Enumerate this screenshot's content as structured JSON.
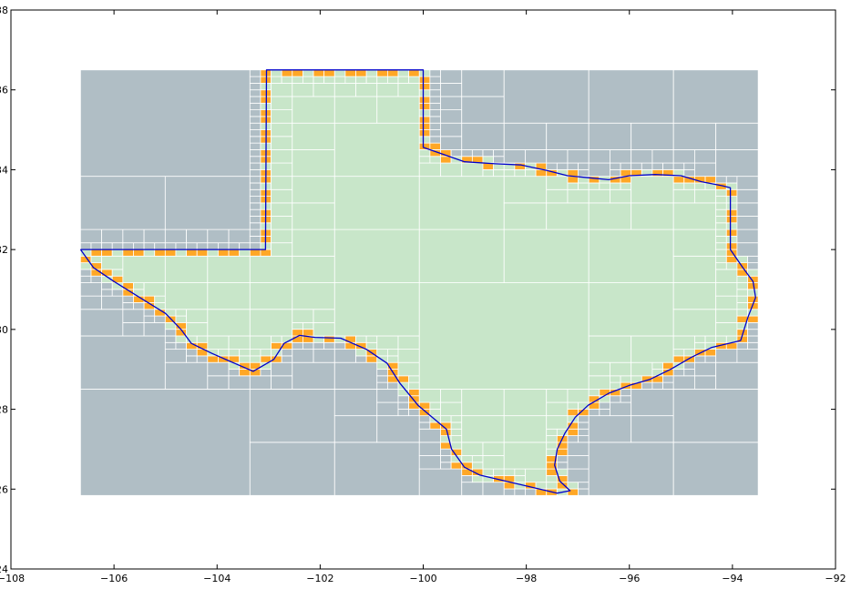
{
  "chart_data": {
    "type": "map",
    "title": "",
    "xlabel": "",
    "ylabel": "",
    "xlim": [
      -108,
      -92
    ],
    "ylim": [
      24,
      38
    ],
    "xticks": [
      -108,
      -106,
      -104,
      -102,
      -100,
      -98,
      -96,
      -94,
      -92
    ],
    "yticks": [
      24,
      26,
      28,
      30,
      32,
      34,
      36,
      38
    ],
    "xtick_labels": [
      "−108",
      "−106",
      "−104",
      "−102",
      "−100",
      "−98",
      "−96",
      "−94",
      "−92"
    ],
    "ytick_labels": [
      "24",
      "26",
      "28",
      "30",
      "32",
      "34",
      "36",
      "38"
    ],
    "grid": false,
    "bbox_extent": {
      "lon": [
        -106.65,
        -93.5
      ],
      "lat": [
        25.84,
        36.5
      ]
    },
    "colors": {
      "outside": "#b0bec5",
      "inside": "#c8e6c9",
      "boundary_cell": "#ffa726",
      "cell_edge": "#ffffff",
      "border": "#0000cc"
    },
    "border": [
      [
        -106.65,
        32.0
      ],
      [
        -103.06,
        32.0
      ],
      [
        -103.04,
        36.5
      ],
      [
        -100.0,
        36.5
      ],
      [
        -100.0,
        34.56
      ],
      [
        -99.6,
        34.38
      ],
      [
        -99.2,
        34.2
      ],
      [
        -98.6,
        34.15
      ],
      [
        -98.1,
        34.12
      ],
      [
        -97.6,
        33.98
      ],
      [
        -97.2,
        33.85
      ],
      [
        -96.8,
        33.8
      ],
      [
        -96.4,
        33.75
      ],
      [
        -96.0,
        33.85
      ],
      [
        -95.5,
        33.88
      ],
      [
        -95.0,
        33.85
      ],
      [
        -94.6,
        33.7
      ],
      [
        -94.2,
        33.6
      ],
      [
        -94.04,
        33.55
      ],
      [
        -94.04,
        33.0
      ],
      [
        -94.04,
        32.0
      ],
      [
        -93.8,
        31.55
      ],
      [
        -93.6,
        31.2
      ],
      [
        -93.55,
        30.8
      ],
      [
        -93.7,
        30.3
      ],
      [
        -93.84,
        29.72
      ],
      [
        -94.4,
        29.55
      ],
      [
        -94.8,
        29.3
      ],
      [
        -95.2,
        29.0
      ],
      [
        -95.6,
        28.75
      ],
      [
        -96.0,
        28.6
      ],
      [
        -96.4,
        28.4
      ],
      [
        -96.8,
        28.1
      ],
      [
        -97.05,
        27.8
      ],
      [
        -97.25,
        27.4
      ],
      [
        -97.4,
        27.0
      ],
      [
        -97.45,
        26.6
      ],
      [
        -97.35,
        26.2
      ],
      [
        -97.15,
        25.96
      ],
      [
        -97.4,
        25.9
      ],
      [
        -97.9,
        26.05
      ],
      [
        -98.4,
        26.2
      ],
      [
        -98.9,
        26.35
      ],
      [
        -99.2,
        26.55
      ],
      [
        -99.45,
        27.0
      ],
      [
        -99.55,
        27.5
      ],
      [
        -100.1,
        28.1
      ],
      [
        -100.45,
        28.65
      ],
      [
        -100.7,
        29.15
      ],
      [
        -101.1,
        29.5
      ],
      [
        -101.6,
        29.78
      ],
      [
        -102.1,
        29.8
      ],
      [
        -102.4,
        29.85
      ],
      [
        -102.7,
        29.65
      ],
      [
        -102.9,
        29.25
      ],
      [
        -103.3,
        28.95
      ],
      [
        -103.75,
        29.2
      ],
      [
        -104.1,
        29.4
      ],
      [
        -104.5,
        29.65
      ],
      [
        -104.7,
        30.0
      ],
      [
        -105.0,
        30.4
      ],
      [
        -105.5,
        30.8
      ],
      [
        -106.0,
        31.2
      ],
      [
        -106.4,
        31.55
      ],
      [
        -106.65,
        32.0
      ]
    ]
  }
}
